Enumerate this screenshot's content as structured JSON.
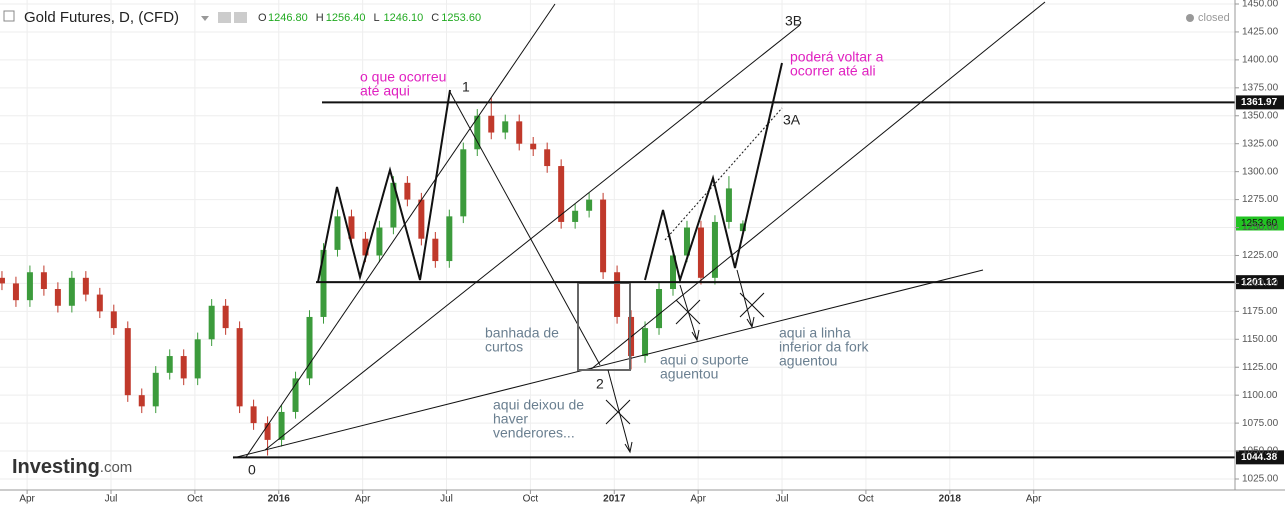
{
  "chart_data": {
    "type": "candlestick",
    "title": "Gold Futures, D, (CFD)",
    "ohlc_header": [
      {
        "key": "O",
        "value": "1246.80"
      },
      {
        "key": "H",
        "value": "1256.40"
      },
      {
        "key": "L",
        "value": "1246.10"
      },
      {
        "key": "C",
        "value": "1253.60"
      }
    ],
    "status": "closed",
    "logo": [
      "Investing",
      ".com"
    ],
    "up_color": "#3c9b3c",
    "down_color": "#c0392b",
    "x": [
      2.1,
      2.6,
      3.1,
      3.6,
      4.1,
      4.6,
      5.1,
      5.6,
      6.1,
      6.6,
      7.1,
      7.6,
      8.1,
      8.6,
      9.1,
      9.6,
      10.1,
      10.6,
      11.1,
      11.6,
      12.1,
      12.6,
      13.1,
      13.6,
      14.1,
      14.6,
      15.1,
      15.6,
      16.1,
      16.6,
      17.1,
      17.6,
      18.1,
      18.6,
      19.1,
      19.6,
      20.1,
      20.6,
      21.1,
      21.6,
      22.1,
      22.6,
      23.1,
      23.6,
      24.1,
      24.6,
      25.1,
      25.6,
      26.1,
      26.6,
      27.1,
      27.6,
      28.1,
      28.6
    ],
    "open": [
      1205,
      1200,
      1185,
      1210,
      1195,
      1180,
      1205,
      1190,
      1175,
      1160,
      1100,
      1090,
      1120,
      1135,
      1115,
      1150,
      1180,
      1160,
      1090,
      1075,
      1060,
      1085,
      1115,
      1170,
      1230,
      1260,
      1240,
      1225,
      1250,
      1290,
      1275,
      1240,
      1220,
      1260,
      1320,
      1350,
      1335,
      1345,
      1325,
      1320,
      1305,
      1255,
      1265,
      1275,
      1210,
      1170,
      1135,
      1160,
      1195,
      1225,
      1250,
      1205,
      1255,
      1246.8
    ],
    "high": [
      1211,
      1206,
      1216,
      1216,
      1201,
      1211,
      1211,
      1196,
      1181,
      1166,
      1106,
      1126,
      1141,
      1141,
      1156,
      1186,
      1186,
      1166,
      1096,
      1081,
      1091,
      1121,
      1176,
      1236,
      1266,
      1266,
      1246,
      1256,
      1296,
      1296,
      1281,
      1246,
      1266,
      1326,
      1356,
      1366,
      1351,
      1351,
      1331,
      1326,
      1311,
      1271,
      1281,
      1281,
      1216,
      1176,
      1166,
      1201,
      1231,
      1256,
      1256,
      1261,
      1296,
      1256.4
    ],
    "low": [
      1194,
      1179,
      1179,
      1189,
      1174,
      1174,
      1184,
      1169,
      1154,
      1094,
      1084,
      1084,
      1114,
      1109,
      1109,
      1144,
      1154,
      1084,
      1069,
      1046,
      1054,
      1079,
      1109,
      1164,
      1224,
      1234,
      1219,
      1219,
      1244,
      1269,
      1234,
      1214,
      1214,
      1254,
      1314,
      1329,
      1329,
      1319,
      1314,
      1299,
      1249,
      1249,
      1259,
      1204,
      1164,
      1123,
      1129,
      1154,
      1189,
      1219,
      1199,
      1199,
      1249,
      1246.1
    ],
    "close": [
      1200,
      1185,
      1210,
      1195,
      1180,
      1205,
      1190,
      1175,
      1160,
      1100,
      1090,
      1120,
      1135,
      1115,
      1150,
      1180,
      1160,
      1090,
      1075,
      1060,
      1085,
      1115,
      1170,
      1230,
      1260,
      1240,
      1225,
      1250,
      1290,
      1275,
      1240,
      1220,
      1260,
      1320,
      1350,
      1335,
      1345,
      1325,
      1320,
      1305,
      1255,
      1265,
      1275,
      1210,
      1170,
      1135,
      1160,
      1195,
      1225,
      1250,
      1205,
      1255,
      1285,
      1253.6
    ],
    "xlim": [
      2.03,
      46.2
    ],
    "ylim": [
      1025,
      1450
    ],
    "xticks": [
      {
        "value": 3,
        "label": "Apr"
      },
      {
        "value": 6,
        "label": "Jul"
      },
      {
        "value": 9,
        "label": "Oct"
      },
      {
        "value": 12,
        "label": "2016"
      },
      {
        "value": 15,
        "label": "Apr"
      },
      {
        "value": 18,
        "label": "Jul"
      },
      {
        "value": 21,
        "label": "Oct"
      },
      {
        "value": 24,
        "label": "2017"
      },
      {
        "value": 27,
        "label": "Apr"
      },
      {
        "value": 30,
        "label": "Jul"
      },
      {
        "value": 33,
        "label": "Oct"
      },
      {
        "value": 36,
        "label": "2018"
      },
      {
        "value": 39,
        "label": "Apr"
      }
    ],
    "yticks": [
      {
        "value": 1450,
        "label": "1450.00"
      },
      {
        "value": 1425,
        "label": "1425.00"
      },
      {
        "value": 1400,
        "label": "1400.00"
      },
      {
        "value": 1375,
        "label": "1375.00"
      },
      {
        "value": 1350,
        "label": "1350.00"
      },
      {
        "value": 1325,
        "label": "1325.00"
      },
      {
        "value": 1300,
        "label": "1300.00"
      },
      {
        "value": 1275,
        "label": "1275.00"
      },
      {
        "value": 1250,
        "label": "1250.00"
      },
      {
        "value": 1225,
        "label": "1225.00"
      },
      {
        "value": 1200,
        "label": "1200.00"
      },
      {
        "value": 1175,
        "label": "1175.00"
      },
      {
        "value": 1150,
        "label": "1150.00"
      },
      {
        "value": 1125,
        "label": "1125.00"
      },
      {
        "value": 1100,
        "label": "1100.00"
      },
      {
        "value": 1075,
        "label": "1075.00"
      },
      {
        "value": 1050,
        "label": "1050.00"
      },
      {
        "value": 1025,
        "label": "1025.00"
      }
    ],
    "levels": [
      1361.97,
      1201.12,
      1044.38
    ],
    "last_price": {
      "value": 1253.6,
      "label": "1253.60"
    },
    "grid": true,
    "annotations": [
      {
        "lines": [
          "o que ocorreu",
          "até aqui"
        ],
        "color": "#e020c0"
      },
      {
        "lines": [
          "1"
        ],
        "color": "#222222"
      },
      {
        "lines": [
          "3B"
        ],
        "color": "#222222"
      },
      {
        "lines": [
          "poderá voltar a",
          "ocorrer até ali"
        ],
        "color": "#e020c0"
      },
      {
        "lines": [
          "3A"
        ],
        "color": "#222222"
      },
      {
        "lines": [
          "banhada de",
          "curtos"
        ],
        "color": "#6a7f90"
      },
      {
        "lines": [
          "2"
        ],
        "color": "#222222"
      },
      {
        "lines": [
          "aqui o suporte",
          "aguentou"
        ],
        "color": "#6a7f90"
      },
      {
        "lines": [
          "aqui a linha",
          "inferior da fork",
          "aguentou"
        ],
        "color": "#6a7f90"
      },
      {
        "lines": [
          "aqui deixou de",
          "haver",
          "venderores..."
        ],
        "color": "#6a7f90"
      },
      {
        "lines": [
          "0"
        ],
        "color": "#222222"
      }
    ]
  }
}
